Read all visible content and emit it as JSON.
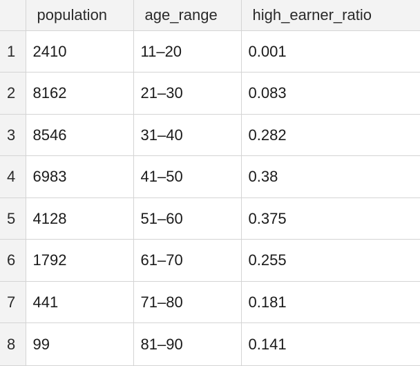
{
  "table": {
    "columns": [
      "population",
      "age_range",
      "high_earner_ratio"
    ],
    "rows": [
      {
        "index": "1",
        "population": "2410",
        "age_range": "11–20",
        "high_earner_ratio": "0.001"
      },
      {
        "index": "2",
        "population": "8162",
        "age_range": "21–30",
        "high_earner_ratio": "0.083"
      },
      {
        "index": "3",
        "population": "8546",
        "age_range": "31–40",
        "high_earner_ratio": "0.282"
      },
      {
        "index": "4",
        "population": "6983",
        "age_range": "41–50",
        "high_earner_ratio": "0.38"
      },
      {
        "index": "5",
        "population": "4128",
        "age_range": "51–60",
        "high_earner_ratio": "0.375"
      },
      {
        "index": "6",
        "population": "1792",
        "age_range": "61–70",
        "high_earner_ratio": "0.255"
      },
      {
        "index": "7",
        "population": "441",
        "age_range": "71–80",
        "high_earner_ratio": "0.181"
      },
      {
        "index": "8",
        "population": "99",
        "age_range": "81–90",
        "high_earner_ratio": "0.141"
      }
    ]
  }
}
